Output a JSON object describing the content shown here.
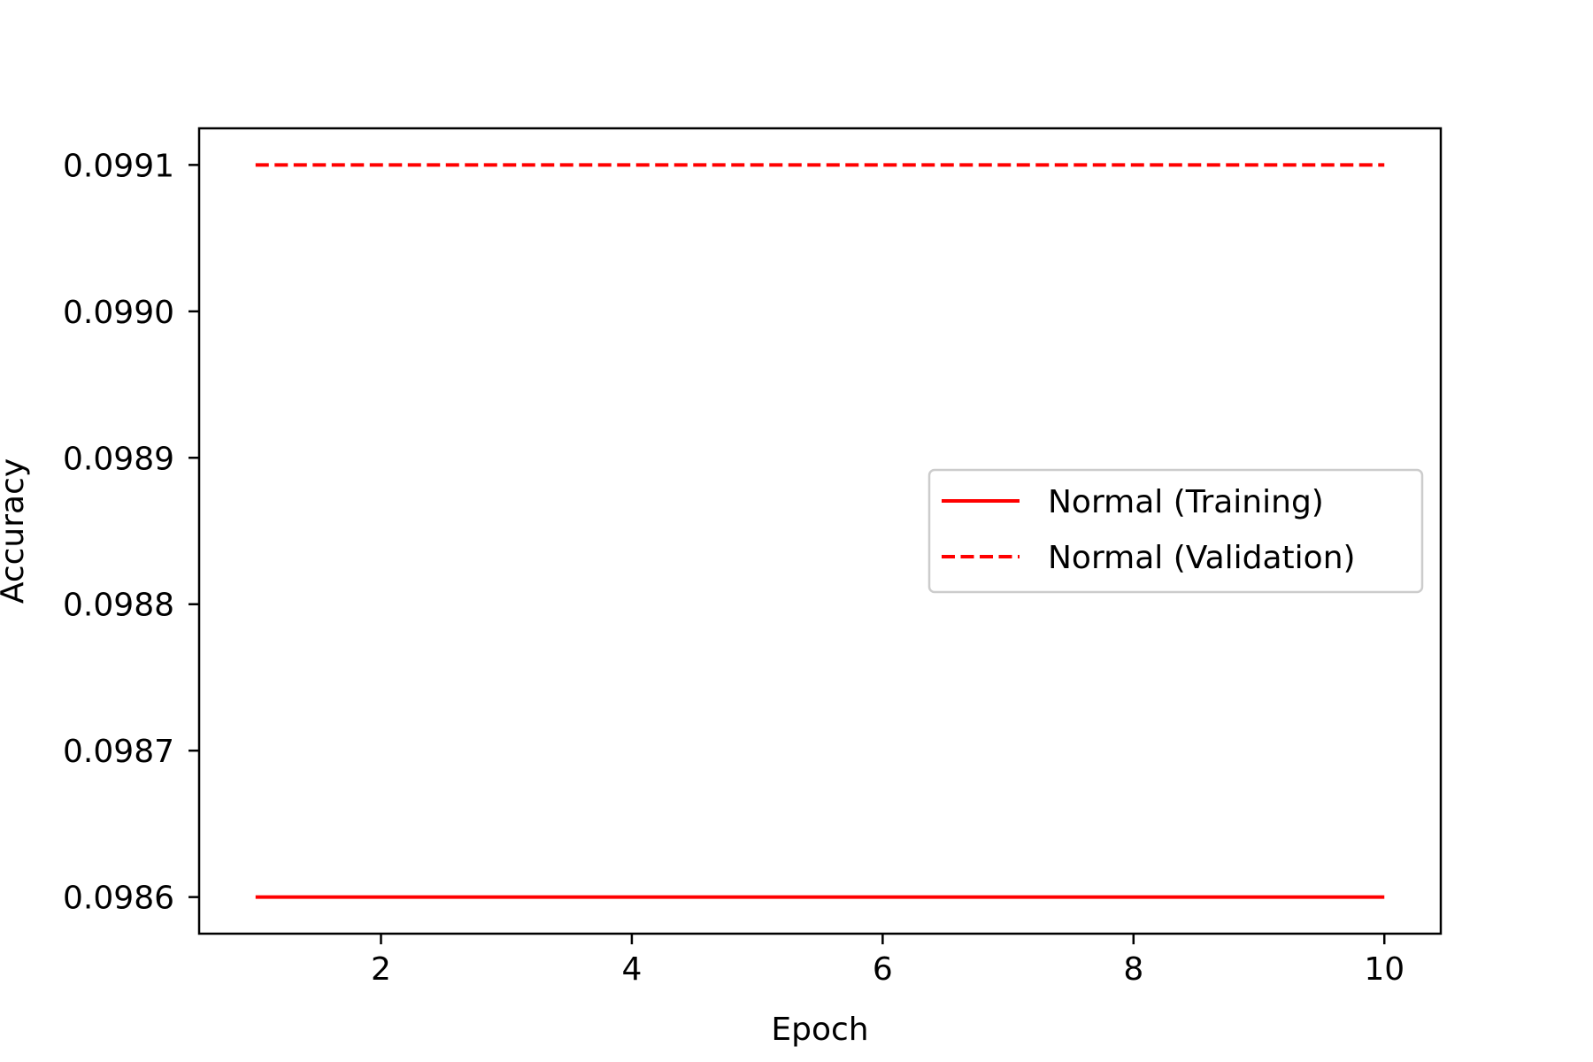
{
  "chart_data": {
    "type": "line",
    "title": "",
    "xlabel": "Epoch",
    "ylabel": "Accuracy",
    "xlim": [
      0.55,
      10.45
    ],
    "ylim": [
      0.098575,
      0.099125
    ],
    "x_ticks": [
      2,
      4,
      6,
      8,
      10
    ],
    "x_tick_labels": [
      "2",
      "4",
      "6",
      "8",
      "10"
    ],
    "y_ticks": [
      0.0986,
      0.0987,
      0.0988,
      0.0989,
      0.099,
      0.0991
    ],
    "y_tick_labels": [
      "0.0986",
      "0.0987",
      "0.0988",
      "0.0989",
      "0.0990",
      "0.0991"
    ],
    "grid": false,
    "legend_position": "center-right",
    "x": [
      1,
      2,
      3,
      4,
      5,
      6,
      7,
      8,
      9,
      10
    ],
    "series": [
      {
        "name": "Normal (Training)",
        "color": "#ff0000",
        "style": "solid",
        "values": [
          0.0986,
          0.0986,
          0.0986,
          0.0986,
          0.0986,
          0.0986,
          0.0986,
          0.0986,
          0.0986,
          0.0986
        ]
      },
      {
        "name": "Normal (Validation)",
        "color": "#ff0000",
        "style": "dashed",
        "values": [
          0.0991,
          0.0991,
          0.0991,
          0.0991,
          0.0991,
          0.0991,
          0.0991,
          0.0991,
          0.0991,
          0.0991
        ]
      }
    ]
  }
}
